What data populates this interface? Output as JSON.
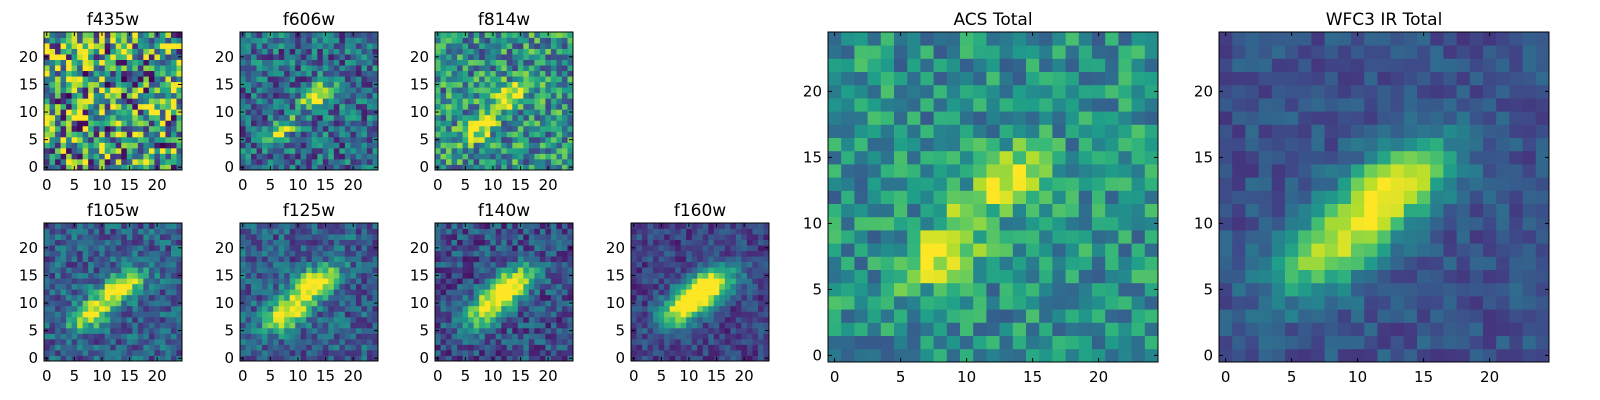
{
  "figure": {
    "background": "#ffffff",
    "colormap": "viridis"
  },
  "chart_data": [
    {
      "type": "heatmap",
      "title": "f435w",
      "xticks": [
        "0",
        "5",
        "10",
        "15",
        "20"
      ],
      "yticks": [
        "0",
        "5",
        "10",
        "15",
        "20"
      ],
      "xlim": [
        0,
        25
      ],
      "ylim": [
        0,
        25
      ],
      "blobs": [],
      "noise": 0.55,
      "floor": 0.55,
      "seed": 11
    },
    {
      "type": "heatmap",
      "title": "f606w",
      "xticks": [
        "0",
        "5",
        "10",
        "15",
        "20"
      ],
      "yticks": [
        "0",
        "5",
        "10",
        "15",
        "20"
      ],
      "xlim": [
        0,
        25
      ],
      "ylim": [
        0,
        25
      ],
      "blobs": [
        [
          13.5,
          13,
          2.0,
          1.6,
          0.75,
          0.5
        ],
        [
          7,
          7,
          1.8,
          1.4,
          0.6,
          0.5
        ]
      ],
      "noise": 0.28,
      "floor": 0.35,
      "seed": 23
    },
    {
      "type": "heatmap",
      "title": "f814w",
      "xticks": [
        "0",
        "5",
        "10",
        "15",
        "20"
      ],
      "yticks": [
        "0",
        "5",
        "10",
        "15",
        "20"
      ],
      "xlim": [
        0,
        25
      ],
      "ylim": [
        0,
        25
      ],
      "blobs": [
        [
          13,
          13,
          2.4,
          1.8,
          0.55,
          0.5
        ],
        [
          7,
          7,
          2.2,
          1.8,
          0.55,
          0.5
        ]
      ],
      "noise": 0.32,
      "floor": 0.5,
      "seed": 37
    },
    {
      "type": "heatmap",
      "title": "f105w",
      "xticks": [
        "0",
        "5",
        "10",
        "15",
        "20"
      ],
      "yticks": [
        "0",
        "5",
        "10",
        "15",
        "20"
      ],
      "xlim": [
        0,
        25
      ],
      "ylim": [
        0,
        25
      ],
      "blobs": [
        [
          13.5,
          13,
          2.8,
          2.0,
          0.8,
          0.5
        ],
        [
          8,
          8,
          2.6,
          2.0,
          0.7,
          0.5
        ]
      ],
      "noise": 0.2,
      "floor": 0.3,
      "seed": 41
    },
    {
      "type": "heatmap",
      "title": "f125w",
      "xticks": [
        "0",
        "5",
        "10",
        "15",
        "20"
      ],
      "yticks": [
        "0",
        "5",
        "10",
        "15",
        "20"
      ],
      "xlim": [
        0,
        25
      ],
      "ylim": [
        0,
        25
      ],
      "blobs": [
        [
          13,
          13.5,
          3.0,
          2.2,
          0.8,
          0.5
        ],
        [
          8,
          8,
          2.8,
          2.2,
          0.75,
          0.5
        ]
      ],
      "noise": 0.2,
      "floor": 0.3,
      "seed": 53
    },
    {
      "type": "heatmap",
      "title": "f140w",
      "xticks": [
        "0",
        "5",
        "10",
        "15",
        "20"
      ],
      "yticks": [
        "0",
        "5",
        "10",
        "15",
        "20"
      ],
      "xlim": [
        0,
        25
      ],
      "ylim": [
        0,
        25
      ],
      "blobs": [
        [
          13.5,
          13.5,
          3.0,
          2.2,
          0.85,
          0.5
        ],
        [
          9,
          9,
          2.8,
          2.4,
          0.7,
          0.5
        ]
      ],
      "noise": 0.2,
      "floor": 0.25,
      "seed": 67
    },
    {
      "type": "heatmap",
      "title": "f160w",
      "xticks": [
        "0",
        "5",
        "10",
        "15",
        "20"
      ],
      "yticks": [
        "0",
        "5",
        "10",
        "15",
        "20"
      ],
      "xlim": [
        0,
        25
      ],
      "ylim": [
        0,
        25
      ],
      "blobs": [
        [
          13.5,
          13,
          3.4,
          2.4,
          0.9,
          0.5
        ],
        [
          9,
          9,
          3.2,
          2.6,
          0.75,
          0.5
        ]
      ],
      "noise": 0.14,
      "floor": 0.2,
      "seed": 79
    },
    {
      "type": "heatmap",
      "title": "ACS Total",
      "xticks": [
        "0",
        "5",
        "10",
        "15",
        "20"
      ],
      "yticks": [
        "0",
        "5",
        "10",
        "15",
        "20"
      ],
      "xlim": [
        0,
        25
      ],
      "ylim": [
        0,
        25
      ],
      "blobs": [
        [
          13.5,
          13.5,
          1.8,
          1.6,
          0.55,
          0.3
        ],
        [
          7.5,
          7.5,
          1.8,
          1.6,
          0.45,
          0.3
        ],
        [
          10,
          10,
          1.5,
          1.5,
          0.25,
          0.0
        ]
      ],
      "noise": 0.22,
      "floor": 0.5,
      "seed": 97
    },
    {
      "type": "heatmap",
      "title": "WFC3 IR Total",
      "xticks": [
        "0",
        "5",
        "10",
        "15",
        "20"
      ],
      "yticks": [
        "0",
        "5",
        "10",
        "15",
        "20"
      ],
      "xlim": [
        0,
        25
      ],
      "ylim": [
        0,
        25
      ],
      "blobs": [
        [
          13,
          13,
          3.0,
          2.4,
          0.7,
          0.5
        ],
        [
          8,
          8,
          3.2,
          2.6,
          0.6,
          0.5
        ]
      ],
      "noise": 0.1,
      "floor": 0.25,
      "seed": 113
    }
  ]
}
